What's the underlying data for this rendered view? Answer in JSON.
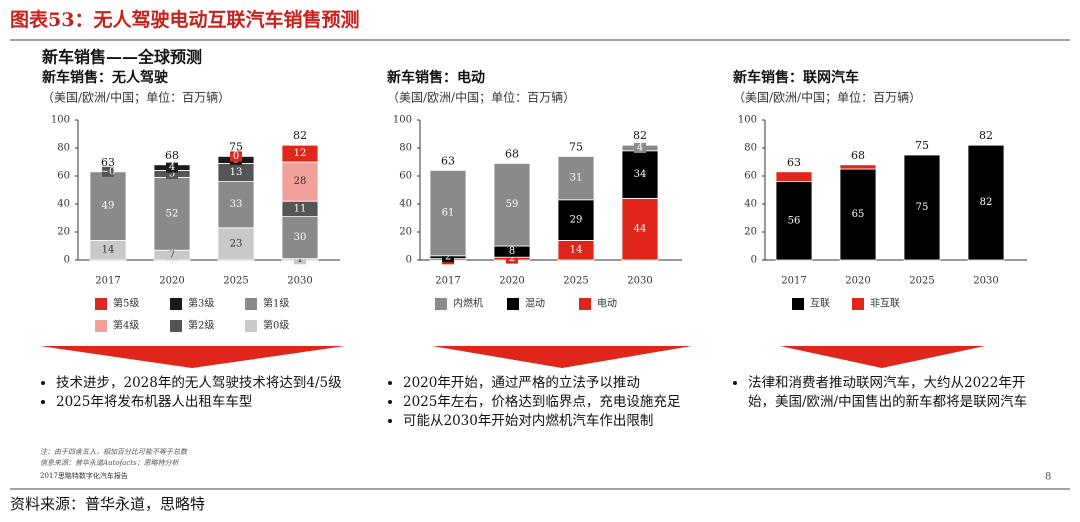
{
  "header": {
    "title": "图表53：无人驾驶电动互联汽车销售预测",
    "subtitle": "新车销售——全球预测"
  },
  "chart_data": [
    {
      "type": "bar",
      "stacked": true,
      "stack_from_last": true,
      "title": "新车销售：无人驾驶",
      "subtitle": "（美国/欧洲/中国；单位：百万辆）",
      "categories": [
        "2017",
        "2020",
        "2025",
        "2030"
      ],
      "ylim": [
        0,
        100
      ],
      "yticks": [
        0,
        20,
        40,
        60,
        80,
        100
      ],
      "totals": [
        63,
        68,
        75,
        82
      ],
      "series": [
        {
          "name": "第5级",
          "color": "#e0251b",
          "label_color": "#ffffff",
          "values": [
            null,
            null,
            0,
            12
          ]
        },
        {
          "name": "第4级",
          "color": "#f2a09a",
          "label_color": "#333333",
          "values": [
            null,
            null,
            null,
            28
          ]
        },
        {
          "name": "第3级",
          "color": "#1a1a1a",
          "label_color": "#ffffff",
          "values": [
            null,
            4,
            5,
            null
          ]
        },
        {
          "name": "第2级",
          "color": "#555555",
          "label_color": "#ffffff",
          "values": [
            0,
            5,
            13,
            11
          ],
          "value_labels": [
            "~0",
            null,
            null,
            null
          ]
        },
        {
          "name": "第1级",
          "color": "#8a8a8a",
          "label_color": "#ffffff",
          "values": [
            49,
            52,
            33,
            30
          ]
        },
        {
          "name": "第0级",
          "color": "#c9c9c9",
          "label_color": "#333333",
          "values": [
            14,
            7,
            23,
            1
          ]
        }
      ]
    },
    {
      "type": "bar",
      "stacked": true,
      "stack_from_last": true,
      "title": "新车销售：电动",
      "subtitle": "（美国/欧洲/中国；单位：百万辆）",
      "categories": [
        "2017",
        "2020",
        "2025",
        "2030"
      ],
      "ylim": [
        0,
        100
      ],
      "yticks": [
        0,
        20,
        40,
        60,
        80,
        100
      ],
      "totals": [
        63,
        68,
        75,
        82
      ],
      "series": [
        {
          "name": "内燃机",
          "color": "#8a8a8a",
          "label_color": "#ffffff",
          "values": [
            61,
            59,
            31,
            4
          ]
        },
        {
          "name": "混动",
          "color": "#000000",
          "label_color": "#ffffff",
          "values": [
            2,
            8,
            29,
            34
          ]
        },
        {
          "name": "电动",
          "color": "#e0251b",
          "label_color": "#ffffff",
          "values": [
            1,
            2,
            14,
            44
          ]
        }
      ]
    },
    {
      "type": "bar",
      "stacked": true,
      "stack_from_last": false,
      "title": "新车销售：联网汽车",
      "subtitle": "（美国/欧洲/中国；单位：百万辆）",
      "categories": [
        "2017",
        "2020",
        "2025",
        "2030"
      ],
      "ylim": [
        0,
        100
      ],
      "yticks": [
        0,
        20,
        40,
        60,
        80,
        100
      ],
      "totals": [
        63,
        68,
        75,
        82
      ],
      "series": [
        {
          "name": "互联",
          "color": "#000000",
          "label_color": "#ffffff",
          "values": [
            56,
            65,
            75,
            82
          ]
        },
        {
          "name": "非互联",
          "color": "#e0251b",
          "label_color": "#ffffff",
          "labels": false,
          "values": [
            7,
            3,
            null,
            null
          ]
        }
      ]
    }
  ],
  "bullets": [
    [
      "技术进步，2028年的无人驾驶技术将达到4/5级",
      "2025年将发布机器人出租车车型"
    ],
    [
      "2020年开始，通过严格的立法予以推动",
      "2025年左右，价格达到临界点，充电设施充足",
      "可能从2030年开始对内燃机汽车作出限制"
    ],
    [
      "法律和消费者推动联网汽车，大约从2022年开始，美国/欧洲/中国售出的新车都将是联网汽车"
    ]
  ],
  "notes": [
    "注：由于四舍五入，相加百分比可能不等于总数",
    "信息来源：普华永道Autofacts；思略特分析",
    "2017思略特数字化汽车报告"
  ],
  "page_number": "8",
  "footer": "资料来源：普华永道，思略特"
}
